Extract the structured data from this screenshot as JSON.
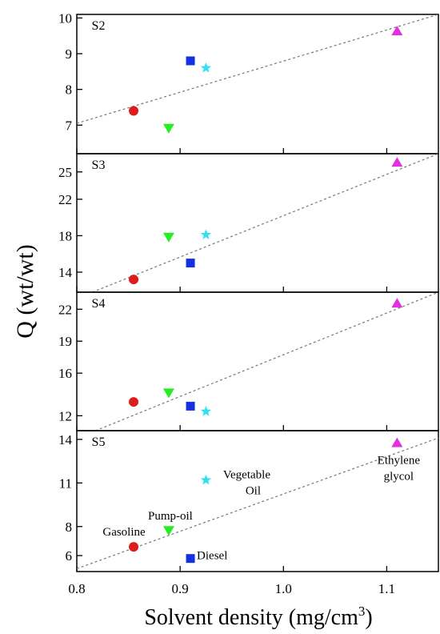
{
  "chart_data": {
    "type": "scatter",
    "x_label_text": "Solvent density (mg/cm",
    "x_label_sup": "3",
    "x_label_close": ")",
    "ylabel": "Q (wt/wt)",
    "xlim": [
      0.8,
      1.15
    ],
    "x_ticks": [
      "0.8",
      "0.9",
      "1.0",
      "1.1"
    ],
    "colors": {
      "Gasoline": "#e01b1b",
      "Pump-oil": "#22ee22",
      "Diesel": "#1530e0",
      "Vegetable Oil": "#33e0f0",
      "Ethylene glycol": "#e030e0",
      "trend": "#777777"
    },
    "markers": {
      "Gasoline": "circle",
      "Pump-oil": "triangle-down",
      "Diesel": "square",
      "Vegetable Oil": "star",
      "Ethylene glycol": "triangle-up"
    },
    "panels": [
      {
        "label": "S2",
        "ylim": [
          6.2,
          10.1
        ],
        "y_ticks": [
          "7",
          "8",
          "9",
          "10"
        ],
        "points": [
          {
            "solvent": "Gasoline",
            "x": 0.855,
            "y": 7.4
          },
          {
            "solvent": "Pump-oil",
            "x": 0.889,
            "y": 6.9
          },
          {
            "solvent": "Diesel",
            "x": 0.91,
            "y": 8.8
          },
          {
            "solvent": "Vegetable Oil",
            "x": 0.925,
            "y": 8.6
          },
          {
            "solvent": "Ethylene glycol",
            "x": 1.11,
            "y": 9.65
          }
        ],
        "trend": [
          [
            0.8,
            7.05
          ],
          [
            1.15,
            10.1
          ]
        ]
      },
      {
        "label": "S3",
        "ylim": [
          11.8,
          27.0
        ],
        "y_ticks": [
          "14",
          "18",
          "22",
          "25"
        ],
        "points": [
          {
            "solvent": "Gasoline",
            "x": 0.855,
            "y": 13.2
          },
          {
            "solvent": "Pump-oil",
            "x": 0.889,
            "y": 17.8
          },
          {
            "solvent": "Diesel",
            "x": 0.91,
            "y": 15.0
          },
          {
            "solvent": "Vegetable Oil",
            "x": 0.925,
            "y": 18.1
          },
          {
            "solvent": "Ethylene glycol",
            "x": 1.11,
            "y": 26.1
          }
        ],
        "trend": [
          [
            0.815,
            11.8
          ],
          [
            1.15,
            27.0
          ]
        ]
      },
      {
        "label": "S4",
        "ylim": [
          10.6,
          23.6
        ],
        "y_ticks": [
          "12",
          "16",
          "19",
          "22"
        ],
        "points": [
          {
            "solvent": "Gasoline",
            "x": 0.855,
            "y": 13.3
          },
          {
            "solvent": "Pump-oil",
            "x": 0.889,
            "y": 14.1
          },
          {
            "solvent": "Diesel",
            "x": 0.91,
            "y": 12.9
          },
          {
            "solvent": "Vegetable Oil",
            "x": 0.925,
            "y": 12.4
          },
          {
            "solvent": "Ethylene glycol",
            "x": 1.11,
            "y": 22.6
          }
        ],
        "trend": [
          [
            0.818,
            10.6
          ],
          [
            1.15,
            23.6
          ]
        ]
      },
      {
        "label": "S5",
        "ylim": [
          4.9,
          14.6
        ],
        "y_ticks": [
          "6",
          "8",
          "11",
          "14"
        ],
        "points": [
          {
            "solvent": "Gasoline",
            "x": 0.855,
            "y": 6.6,
            "annotation": "Gasoline"
          },
          {
            "solvent": "Pump-oil",
            "x": 0.889,
            "y": 7.7,
            "annotation": "Pump-oil"
          },
          {
            "solvent": "Diesel",
            "x": 0.91,
            "y": 5.8,
            "annotation": "Diesel"
          },
          {
            "solvent": "Vegetable Oil",
            "x": 0.925,
            "y": 11.2,
            "annotation": [
              "Vegetable",
              "Oil"
            ]
          },
          {
            "solvent": "Ethylene glycol",
            "x": 1.11,
            "y": 13.8,
            "annotation": [
              "Ethylene",
              "glycol"
            ]
          }
        ],
        "trend": [
          [
            0.8,
            5.1
          ],
          [
            1.15,
            14.1
          ]
        ]
      }
    ]
  }
}
